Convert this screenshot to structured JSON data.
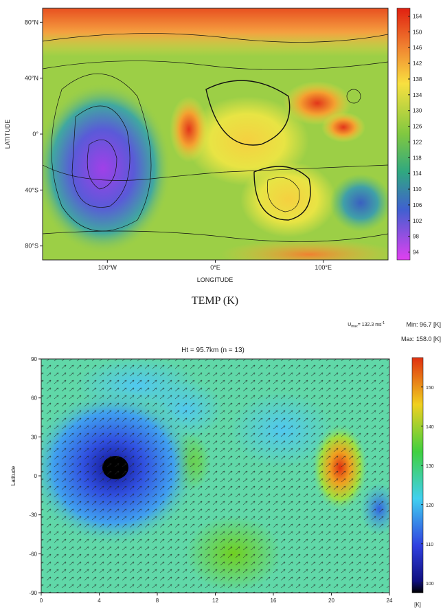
{
  "chart_data": [
    {
      "type": "contour",
      "title": "TEMP (K)",
      "xlabel": "LONGITUDE",
      "ylabel": "LATITUDE",
      "xlim": [
        -160,
        160
      ],
      "ylim": [
        -90,
        90
      ],
      "xticks": [
        {
          "value": -100,
          "label": "100°W"
        },
        {
          "value": 0,
          "label": "0°E"
        },
        {
          "value": 100,
          "label": "100°E"
        }
      ],
      "yticks": [
        {
          "value": 80,
          "label": "80°N"
        },
        {
          "value": 40,
          "label": "40°N"
        },
        {
          "value": 0,
          "label": "0°"
        },
        {
          "value": -40,
          "label": "40°S"
        },
        {
          "value": -80,
          "label": "80°S"
        }
      ],
      "colorbar": {
        "lim": [
          92,
          156
        ],
        "ticks": [
          154,
          150,
          146,
          142,
          138,
          134,
          130,
          126,
          122,
          118,
          114,
          110,
          106,
          102,
          98,
          94
        ]
      }
    },
    {
      "type": "contour",
      "title": "Ht = 95.7km (n = 13)",
      "ylabel": "Latitude",
      "xlim": [
        0,
        24
      ],
      "ylim": [
        -90,
        90
      ],
      "xticks": [
        0,
        4,
        8,
        12,
        16,
        20,
        24
      ],
      "yticks": [
        90,
        60,
        30,
        0,
        -30,
        -60,
        -90
      ],
      "colorbar": {
        "lim": [
          97.5,
          157.5
        ],
        "ticks": [
          150,
          140,
          130,
          120,
          110,
          100
        ],
        "label": "[K]"
      },
      "annotations": {
        "umax": {
          "symbol": "U",
          "subscript": "max",
          "text": "= 132.3 ms",
          "superscript": "-1"
        },
        "min": "Min:  96.7 [K]",
        "max": "Max:  158.0 [K]"
      }
    }
  ]
}
